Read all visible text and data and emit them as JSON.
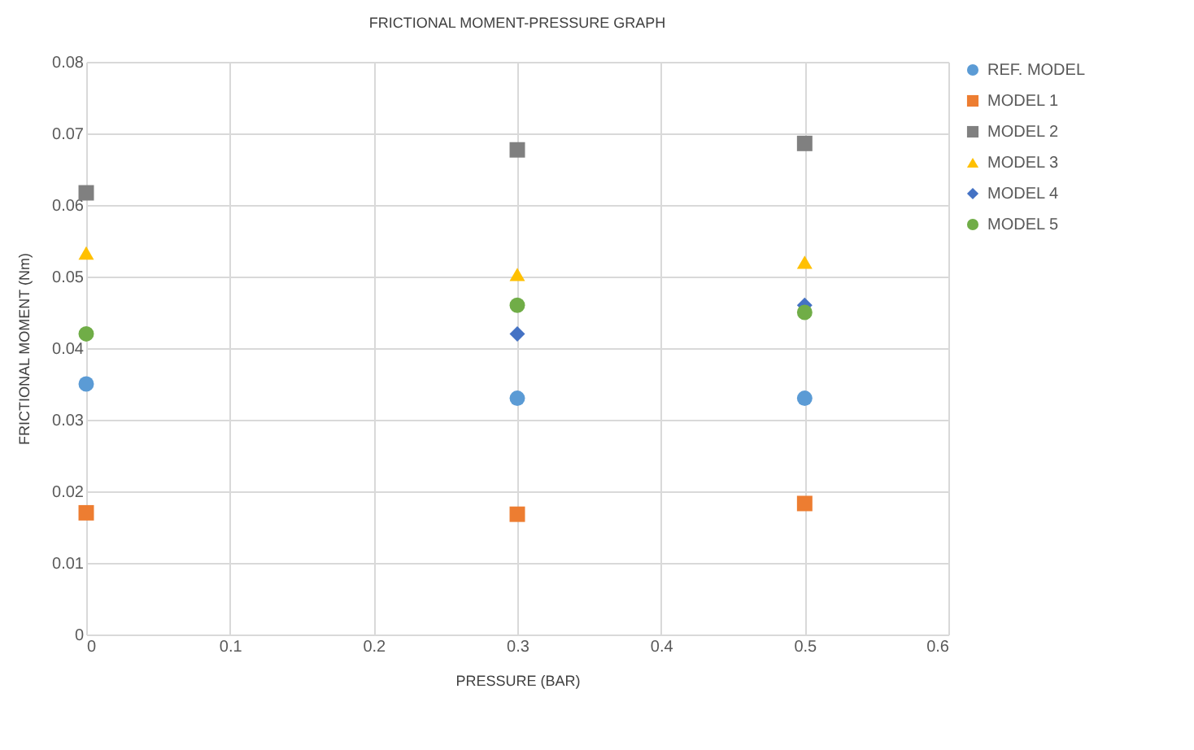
{
  "chart_data": {
    "type": "scatter",
    "title": "FRICTIONAL MOMENT-PRESSURE GRAPH",
    "xlabel": "PRESSURE (BAR)",
    "ylabel": "FRICTIONAL MOMENT (Nm)",
    "x": [
      0,
      0.3,
      0.5
    ],
    "series": [
      {
        "name": "REF. MODEL",
        "color": "#5b9bd5",
        "marker": "circle",
        "values": [
          0.035,
          0.033,
          0.033
        ]
      },
      {
        "name": "MODEL 1",
        "color": "#ed7d31",
        "marker": "square",
        "values": [
          0.017,
          0.0168,
          0.0183
        ]
      },
      {
        "name": "MODEL 2",
        "color": "#808080",
        "marker": "square",
        "values": [
          0.0617,
          0.0677,
          0.0686
        ]
      },
      {
        "name": "MODEL 3",
        "color": "#ffc000",
        "marker": "triangle",
        "values": [
          0.0533,
          0.0503,
          0.052
        ]
      },
      {
        "name": "MODEL 4",
        "color": "#4472c4",
        "marker": "diamond",
        "values": [
          null,
          0.042,
          0.046
        ]
      },
      {
        "name": "MODEL 5",
        "color": "#70ad47",
        "marker": "circle",
        "values": [
          0.042,
          0.046,
          0.045
        ]
      }
    ],
    "xlim": [
      0,
      0.6
    ],
    "xticks": [
      0,
      0.1,
      0.2,
      0.3,
      0.4,
      0.5,
      0.6
    ],
    "ylim": [
      0,
      0.08
    ],
    "yticks": [
      0,
      0.01,
      0.02,
      0.03,
      0.04,
      0.05,
      0.06,
      0.07,
      0.08
    ],
    "grid": true,
    "legend": "right"
  }
}
